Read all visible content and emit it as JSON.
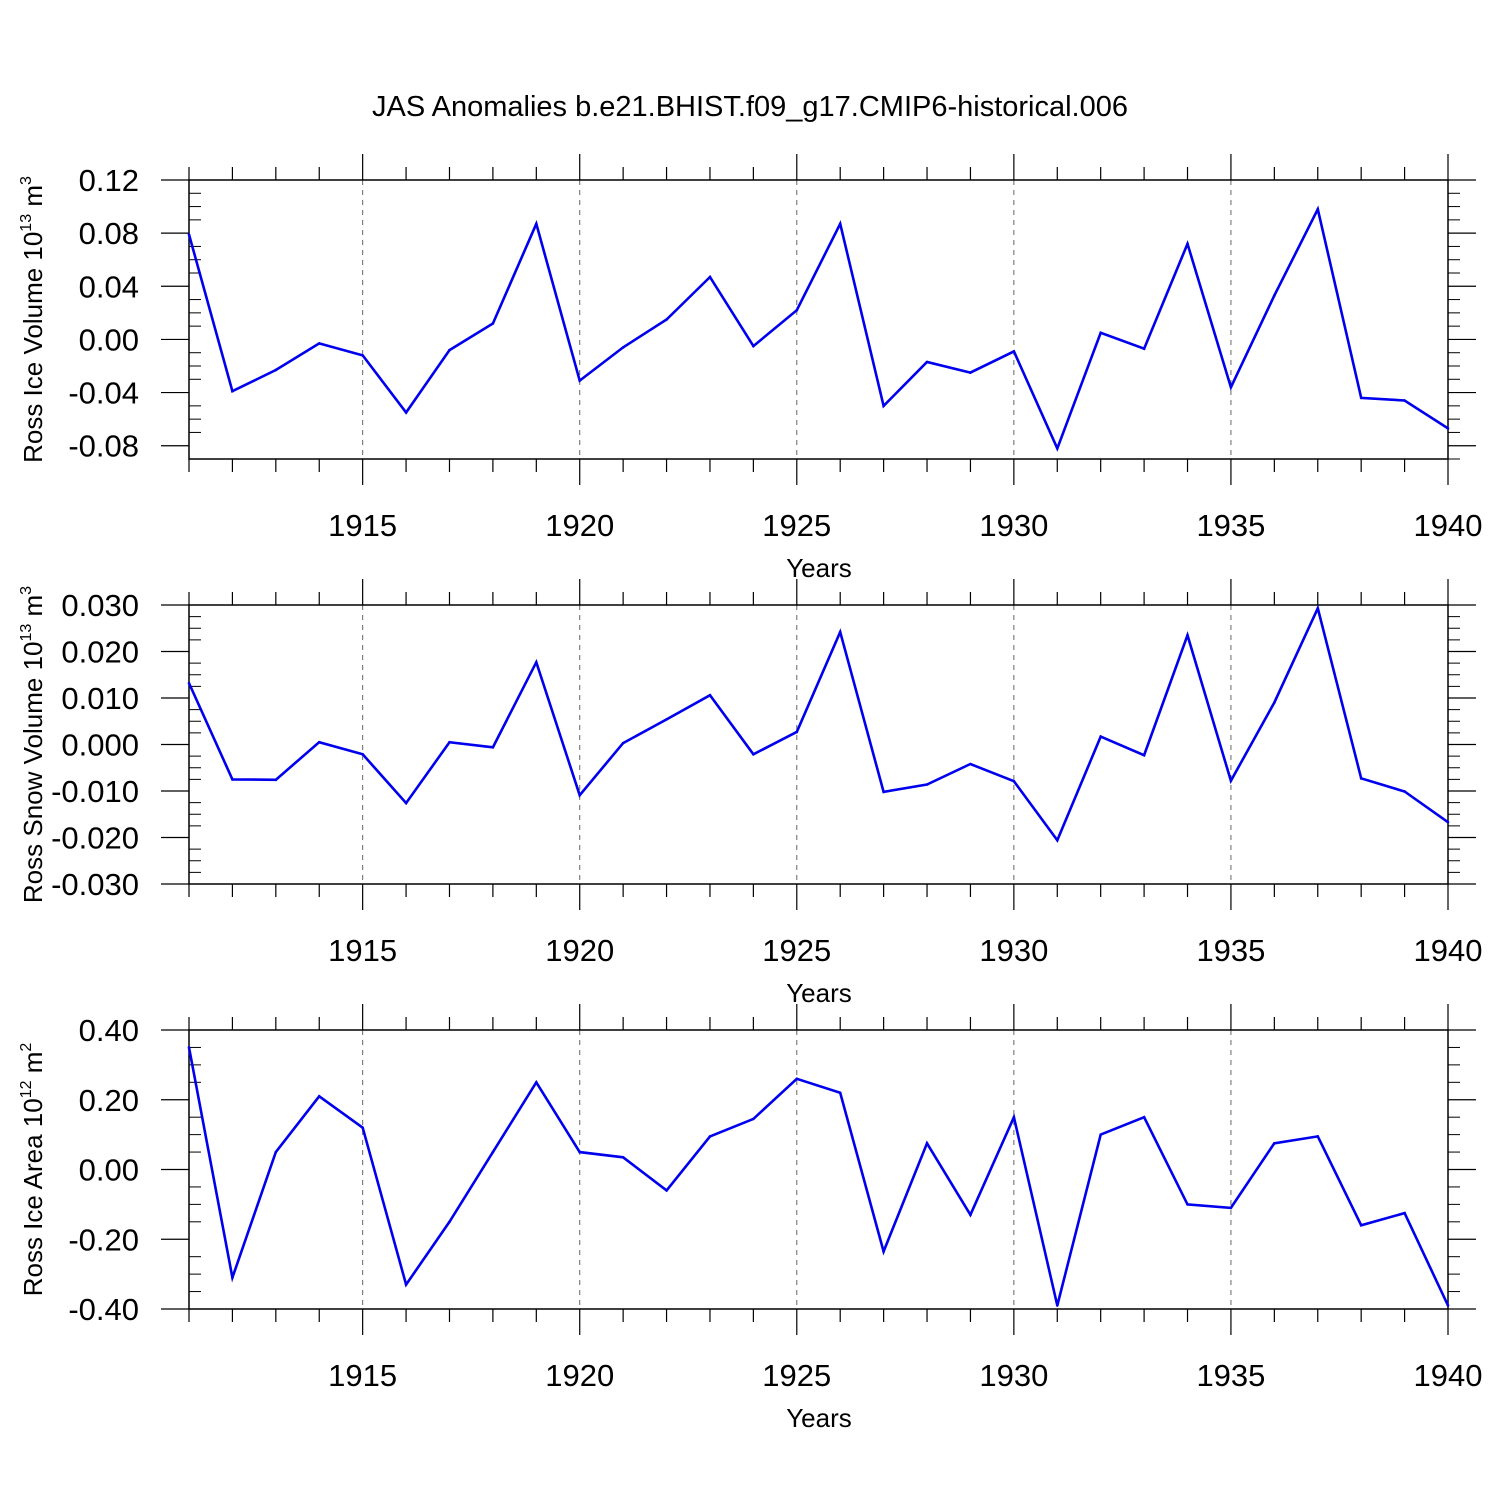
{
  "title": "JAS Anomalies b.e21.BHIST.f09_g17.CMIP6-historical.006",
  "chart_data": [
    {
      "type": "line",
      "ylabel": "Ross Ice Volume 10",
      "ylabel_sup": "13",
      "ylabel_unit": "m",
      "ylabel_unit_sup": "3",
      "xlabel": "Years",
      "xlim": [
        1911,
        1940
      ],
      "ylim": [
        -0.09,
        0.12
      ],
      "yticks": [
        -0.08,
        -0.04,
        0.0,
        0.04,
        0.08,
        0.12
      ],
      "ytick_labels": [
        "-0.08",
        "-0.04",
        "0.00",
        "0.04",
        "0.08",
        "0.12"
      ],
      "xticks": [
        1915,
        1920,
        1925,
        1930,
        1935,
        1940
      ],
      "xtick_labels": [
        "1915",
        "1920",
        "1925",
        "1930",
        "1935",
        "1940"
      ],
      "color": "#0000ee",
      "x": [
        1911,
        1912,
        1913,
        1914,
        1915,
        1916,
        1917,
        1918,
        1919,
        1920,
        1921,
        1922,
        1923,
        1924,
        1925,
        1926,
        1927,
        1928,
        1929,
        1930,
        1931,
        1932,
        1933,
        1934,
        1935,
        1936,
        1937,
        1938,
        1939,
        1940
      ],
      "values": [
        0.079,
        -0.039,
        -0.023,
        -0.003,
        -0.012,
        -0.055,
        -0.008,
        0.012,
        0.087,
        -0.031,
        -0.006,
        0.015,
        0.047,
        -0.005,
        0.022,
        0.087,
        -0.05,
        -0.017,
        -0.025,
        -0.009,
        -0.082,
        0.005,
        -0.007,
        0.072,
        -0.036,
        0.033,
        0.098,
        -0.044,
        -0.046,
        -0.067
      ]
    },
    {
      "type": "line",
      "ylabel": "Ross Snow Volume 10",
      "ylabel_sup": "13",
      "ylabel_unit": "m",
      "ylabel_unit_sup": "3",
      "xlabel": "Years",
      "xlim": [
        1911,
        1940
      ],
      "ylim": [
        -0.03,
        0.03
      ],
      "yticks": [
        -0.03,
        -0.02,
        -0.01,
        0.0,
        0.01,
        0.02,
        0.03
      ],
      "ytick_labels": [
        "-0.030",
        "-0.020",
        "-0.010",
        "0.000",
        "0.010",
        "0.020",
        "0.030"
      ],
      "xticks": [
        1915,
        1920,
        1925,
        1930,
        1935,
        1940
      ],
      "xtick_labels": [
        "1915",
        "1920",
        "1925",
        "1930",
        "1935",
        "1940"
      ],
      "color": "#0000ee",
      "x": [
        1911,
        1912,
        1913,
        1914,
        1915,
        1916,
        1917,
        1918,
        1919,
        1920,
        1921,
        1922,
        1923,
        1924,
        1925,
        1926,
        1927,
        1928,
        1929,
        1930,
        1931,
        1932,
        1933,
        1934,
        1935,
        1936,
        1937,
        1938,
        1939,
        1940
      ],
      "values": [
        0.0132,
        -0.0075,
        -0.0076,
        0.0005,
        -0.0021,
        -0.0126,
        0.0005,
        -0.0006,
        0.0177,
        -0.0109,
        0.0003,
        0.0054,
        0.0106,
        -0.0021,
        0.0027,
        0.0242,
        -0.0102,
        -0.0086,
        -0.0042,
        -0.0079,
        -0.0206,
        0.0017,
        -0.0023,
        0.0235,
        -0.0078,
        0.009,
        0.0293,
        -0.0073,
        -0.0101,
        -0.0167
      ]
    },
    {
      "type": "line",
      "ylabel": "Ross Ice Area 10",
      "ylabel_sup": "12",
      "ylabel_unit": "m",
      "ylabel_unit_sup": "2",
      "xlabel": "Years",
      "xlim": [
        1911,
        1940
      ],
      "ylim": [
        -0.4,
        0.4
      ],
      "yticks": [
        -0.4,
        -0.2,
        0.0,
        0.2,
        0.4
      ],
      "ytick_labels": [
        "-0.40",
        "-0.20",
        "0.00",
        "0.20",
        "0.40"
      ],
      "xticks": [
        1915,
        1920,
        1925,
        1930,
        1935,
        1940
      ],
      "xtick_labels": [
        "1915",
        "1920",
        "1925",
        "1930",
        "1935",
        "1940"
      ],
      "color": "#0000ee",
      "x": [
        1911,
        1912,
        1913,
        1914,
        1915,
        1916,
        1917,
        1918,
        1919,
        1920,
        1921,
        1922,
        1923,
        1924,
        1925,
        1926,
        1927,
        1928,
        1929,
        1930,
        1931,
        1932,
        1933,
        1934,
        1935,
        1936,
        1937,
        1938,
        1939,
        1940
      ],
      "values": [
        0.35,
        -0.31,
        0.05,
        0.21,
        0.12,
        -0.33,
        -0.15,
        0.05,
        0.25,
        0.05,
        0.035,
        -0.06,
        0.095,
        0.145,
        0.26,
        0.22,
        -0.235,
        0.075,
        -0.13,
        0.15,
        -0.39,
        0.1,
        0.15,
        -0.1,
        -0.11,
        0.075,
        0.095,
        -0.16,
        -0.125,
        -0.39
      ]
    }
  ]
}
